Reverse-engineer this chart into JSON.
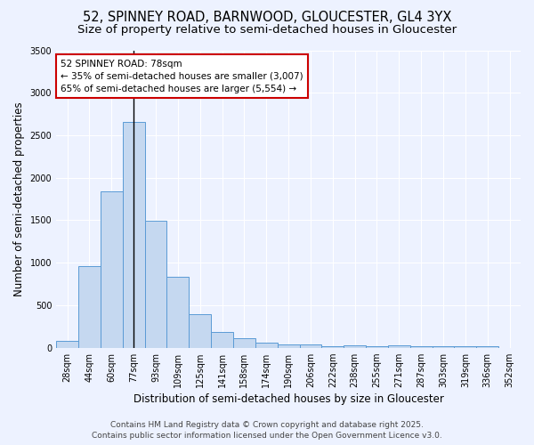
{
  "title": "52, SPINNEY ROAD, BARNWOOD, GLOUCESTER, GL4 3YX",
  "subtitle": "Size of property relative to semi-detached houses in Gloucester",
  "xlabel": "Distribution of semi-detached houses by size in Gloucester",
  "ylabel": "Number of semi-detached properties",
  "categories": [
    "28sqm",
    "44sqm",
    "60sqm",
    "77sqm",
    "93sqm",
    "109sqm",
    "125sqm",
    "141sqm",
    "158sqm",
    "174sqm",
    "190sqm",
    "206sqm",
    "222sqm",
    "238sqm",
    "255sqm",
    "271sqm",
    "287sqm",
    "303sqm",
    "319sqm",
    "336sqm",
    "352sqm"
  ],
  "values": [
    80,
    960,
    1840,
    2660,
    1490,
    830,
    395,
    185,
    115,
    55,
    40,
    35,
    20,
    30,
    20,
    25,
    20,
    20,
    20,
    18,
    0
  ],
  "bar_color": "#c5d8f0",
  "bar_edge_color": "#5b9bd5",
  "subject_bar_index": 3,
  "subject_line_color": "#000000",
  "annotation_line1": "52 SPINNEY ROAD: 78sqm",
  "annotation_line2": "← 35% of semi-detached houses are smaller (3,007)",
  "annotation_line3": "65% of semi-detached houses are larger (5,554) →",
  "annotation_box_color": "#ffffff",
  "annotation_box_edge_color": "#cc0000",
  "background_color": "#edf2ff",
  "grid_color": "#ffffff",
  "ylim": [
    0,
    3500
  ],
  "yticks": [
    0,
    500,
    1000,
    1500,
    2000,
    2500,
    3000,
    3500
  ],
  "footer_line1": "Contains HM Land Registry data © Crown copyright and database right 2025.",
  "footer_line2": "Contains public sector information licensed under the Open Government Licence v3.0.",
  "title_fontsize": 10.5,
  "subtitle_fontsize": 9.5,
  "tick_fontsize": 7,
  "ylabel_fontsize": 8.5,
  "xlabel_fontsize": 8.5,
  "annotation_fontsize": 7.5,
  "footer_fontsize": 6.5
}
